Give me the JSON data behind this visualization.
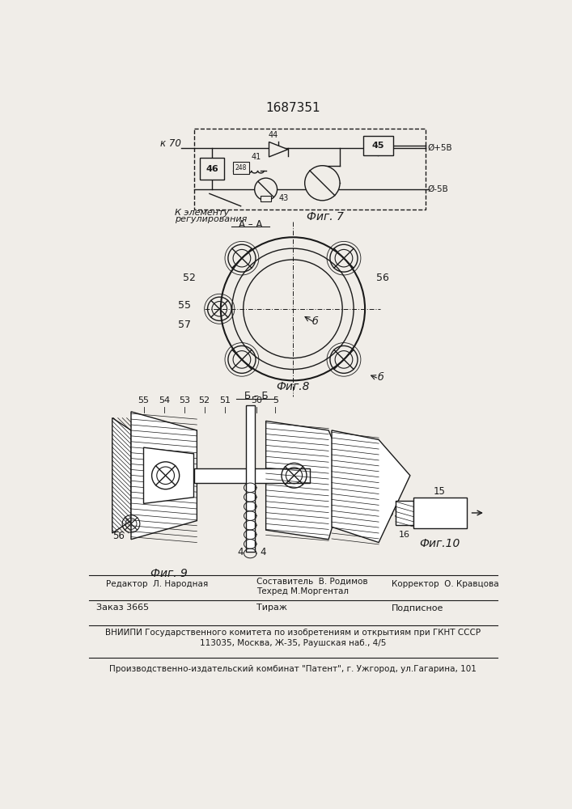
{
  "title": "1687351",
  "bg_color": "#f0ede8",
  "line_color": "#1a1a1a",
  "fig7_label": "Фиг. 7",
  "fig8_label": "Фиг.8",
  "fig9_label": "Фиг. 9",
  "fig10_label": "Фиг.10"
}
